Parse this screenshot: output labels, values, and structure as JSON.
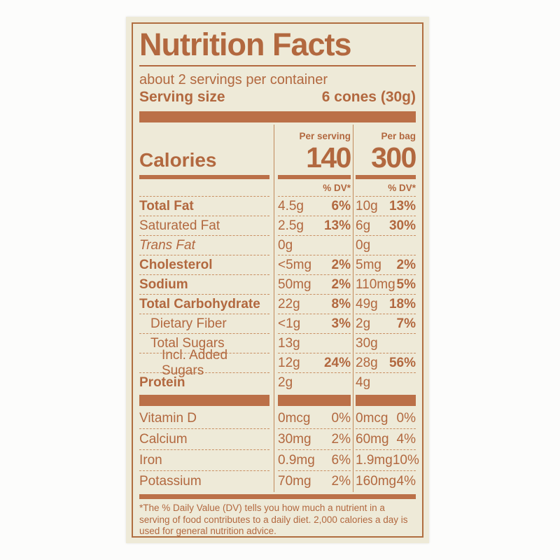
{
  "label": {
    "title": "Nutrition Facts",
    "servings_per_container": "about 2 servings per container",
    "serving_size": {
      "label": "Serving size",
      "value": "6 cones (30g)"
    },
    "calories": {
      "label": "Calories",
      "columns": [
        {
          "header": "Per serving",
          "value": "140"
        },
        {
          "header": "Per bag",
          "value": "300"
        }
      ]
    },
    "dv_header": "% DV*",
    "nutrients": [
      {
        "name": "Total Fat",
        "style": "bold",
        "indent": 0,
        "per_serving": {
          "amount": "4.5g",
          "dv": "6%"
        },
        "per_bag": {
          "amount": "10g",
          "dv": "13%"
        }
      },
      {
        "name": "Saturated Fat",
        "style": "regular",
        "indent": 0,
        "per_serving": {
          "amount": "2.5g",
          "dv": "13%"
        },
        "per_bag": {
          "amount": "6g",
          "dv": "30%"
        }
      },
      {
        "name": "Trans Fat",
        "style": "italic",
        "indent": 0,
        "per_serving": {
          "amount": "0g",
          "dv": ""
        },
        "per_bag": {
          "amount": "0g",
          "dv": ""
        }
      },
      {
        "name": "Cholesterol",
        "style": "bold",
        "indent": 0,
        "per_serving": {
          "amount": "<5mg",
          "dv": "2%"
        },
        "per_bag": {
          "amount": "5mg",
          "dv": "2%"
        }
      },
      {
        "name": "Sodium",
        "style": "bold",
        "indent": 0,
        "per_serving": {
          "amount": "50mg",
          "dv": "2%"
        },
        "per_bag": {
          "amount": "110mg",
          "dv": "5%"
        }
      },
      {
        "name": "Total Carbohydrate",
        "style": "bold",
        "indent": 0,
        "per_serving": {
          "amount": "22g",
          "dv": "8%"
        },
        "per_bag": {
          "amount": "49g",
          "dv": "18%"
        }
      },
      {
        "name": "Dietary Fiber",
        "style": "regular",
        "indent": 1,
        "per_serving": {
          "amount": "<1g",
          "dv": "3%"
        },
        "per_bag": {
          "amount": "2g",
          "dv": "7%"
        }
      },
      {
        "name": "Total Sugars",
        "style": "regular",
        "indent": 1,
        "per_serving": {
          "amount": "13g",
          "dv": ""
        },
        "per_bag": {
          "amount": "30g",
          "dv": ""
        }
      },
      {
        "name": "Incl. Added Sugars",
        "style": "regular",
        "indent": 2,
        "per_serving": {
          "amount": "12g",
          "dv": "24%"
        },
        "per_bag": {
          "amount": "28g",
          "dv": "56%"
        }
      },
      {
        "name": "Protein",
        "style": "bold",
        "indent": 0,
        "per_serving": {
          "amount": "2g",
          "dv": ""
        },
        "per_bag": {
          "amount": "4g",
          "dv": ""
        }
      }
    ],
    "micronutrients": [
      {
        "name": "Vitamin D",
        "style": "regular",
        "indent": 0,
        "per_serving": {
          "amount": "0mcg",
          "dv": "0%"
        },
        "per_bag": {
          "amount": "0mcg",
          "dv": "0%"
        }
      },
      {
        "name": "Calcium",
        "style": "regular",
        "indent": 0,
        "per_serving": {
          "amount": "30mg",
          "dv": "2%"
        },
        "per_bag": {
          "amount": "60mg",
          "dv": "4%"
        }
      },
      {
        "name": "Iron",
        "style": "regular",
        "indent": 0,
        "per_serving": {
          "amount": "0.9mg",
          "dv": "6%"
        },
        "per_bag": {
          "amount": "1.9mg",
          "dv": "10%"
        }
      },
      {
        "name": "Potassium",
        "style": "regular",
        "indent": 0,
        "per_serving": {
          "amount": "70mg",
          "dv": "2%"
        },
        "per_bag": {
          "amount": "160mg",
          "dv": "4%"
        }
      }
    ],
    "footnote": "*The % Daily Value (DV) tells you how much a nutrient in a serving of food contributes to a daily diet. 2,000 calories a day is used for general nutrition advice."
  },
  "colors": {
    "page_background": "#fcfcfb",
    "label_background": "#eeead8",
    "text_orange": "#b2683f",
    "bar_orange": "#bb7048",
    "dashed_divider": "#c98f63",
    "border_orange": "#b06e40"
  }
}
